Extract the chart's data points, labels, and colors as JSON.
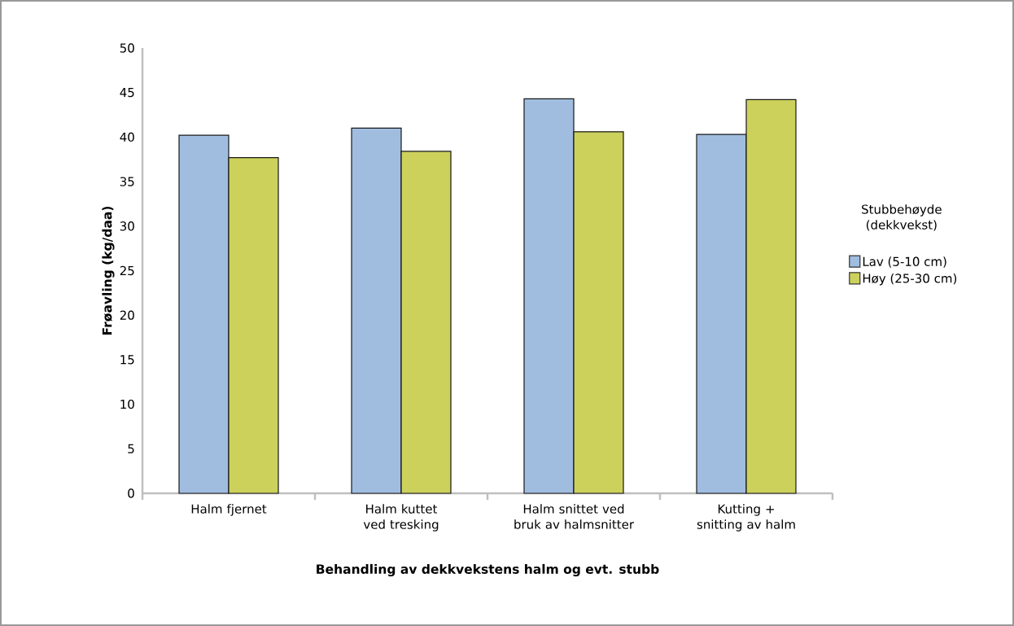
{
  "chart_data": {
    "type": "bar",
    "xlabel": "Behandling av dekkvekstens halm og evt. stubb",
    "ylabel": "Frøavling (kg/daa)",
    "legend_title": "Stubbehøyde (dekkvekst)",
    "categories": [
      "Halm fjernet",
      "Halm kuttet ved tresking",
      "Halm snittet ved bruk av halmsnitter",
      "Kutting + snitting av halm"
    ],
    "series": [
      {
        "name": "Lav (5-10 cm)",
        "color": "#a0bde0",
        "values": [
          40.2,
          41.0,
          44.3,
          40.3
        ]
      },
      {
        "name": "Høy (25-30 cm)",
        "color": "#ccd15c",
        "values": [
          37.7,
          38.4,
          40.6,
          44.2
        ]
      }
    ],
    "ylim": [
      0,
      50
    ],
    "yticks": [
      0,
      5,
      10,
      15,
      20,
      25,
      30,
      35,
      40,
      45,
      50
    ],
    "grid": false,
    "legend": "right"
  }
}
